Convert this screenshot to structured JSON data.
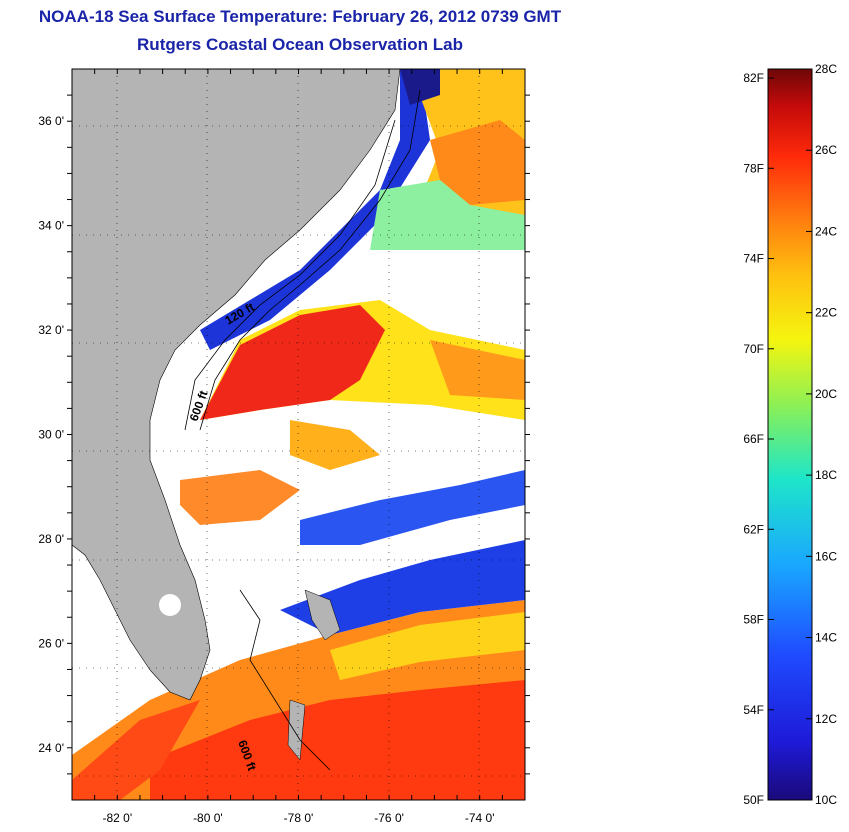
{
  "header": {
    "title": "NOAA-18 Sea Surface Temperature:  February 26, 2012 0739 GMT",
    "subtitle": "Rutgers Coastal Ocean Observation Lab"
  },
  "map": {
    "lon_range": [
      -83,
      -73
    ],
    "lat_range": [
      23,
      37
    ],
    "lon_ticks": [
      {
        "value": -82,
        "label": "-82 0'"
      },
      {
        "value": -80,
        "label": "-80 0'"
      },
      {
        "value": -78,
        "label": "-78 0'"
      },
      {
        "value": -76,
        "label": "-76 0'"
      },
      {
        "value": -74,
        "label": "-74 0'"
      }
    ],
    "lat_ticks": [
      {
        "value": 24,
        "label": "24 0'"
      },
      {
        "value": 26,
        "label": "26 0'"
      },
      {
        "value": 28,
        "label": "28 0'"
      },
      {
        "value": 30,
        "label": "30 0'"
      },
      {
        "value": 32,
        "label": "32 0'"
      },
      {
        "value": 34,
        "label": "34 0'"
      },
      {
        "value": 36,
        "label": "36 0'"
      }
    ],
    "contour_labels": [
      "600 ft",
      "120 ft",
      "600 ft"
    ],
    "colors": {
      "land": "#b4b4b4",
      "cloud": "#ffffff",
      "frame": "#000000"
    }
  },
  "colorbar": {
    "range_c": [
      10,
      28
    ],
    "fahrenheit_labels": [
      "82F",
      "78F",
      "74F",
      "70F",
      "66F",
      "62F",
      "58F",
      "54F",
      "50F"
    ],
    "celsius_labels": [
      "28C",
      "26C",
      "24C",
      "22C",
      "20C",
      "18C",
      "16C",
      "14C",
      "12C",
      "10C"
    ]
  }
}
